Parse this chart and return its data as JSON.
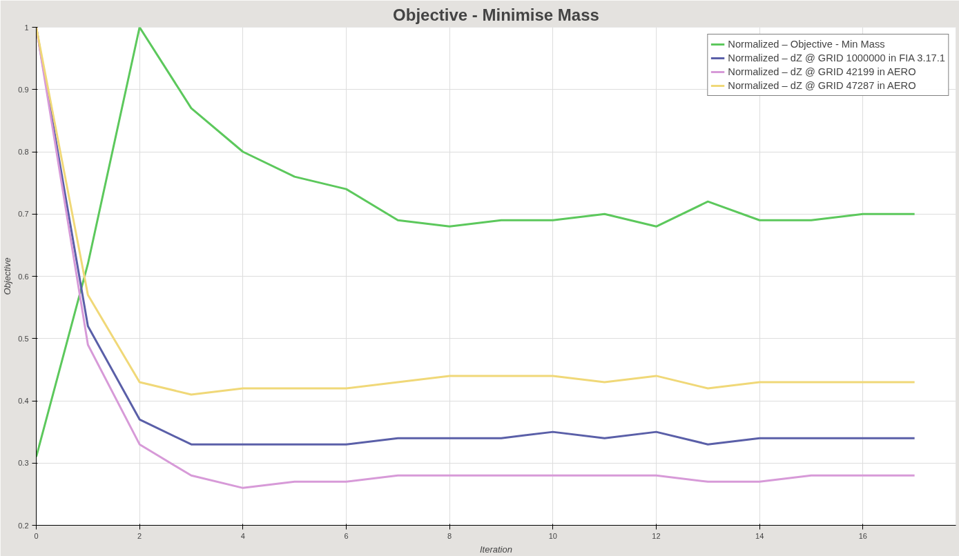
{
  "chart_data": {
    "type": "line",
    "title": "Objective - Minimise Mass",
    "xlabel": "Iteration",
    "ylabel": "Objective",
    "x": [
      0,
      1,
      2,
      3,
      4,
      5,
      6,
      7,
      8,
      9,
      10,
      11,
      12,
      13,
      14,
      15,
      16,
      17
    ],
    "series": [
      {
        "name": "Normalized – Objective - Min Mass",
        "color": "#5cc85c",
        "values": [
          0.31,
          0.62,
          1.0,
          0.87,
          0.8,
          0.76,
          0.74,
          0.69,
          0.68,
          0.69,
          0.69,
          0.7,
          0.68,
          0.72,
          0.69,
          0.69,
          0.7,
          0.7
        ]
      },
      {
        "name": "Normalized – dZ @ GRID 1000000 in FIA 3.17.1",
        "color": "#5a5fa8",
        "values": [
          1.0,
          0.52,
          0.37,
          0.33,
          0.33,
          0.33,
          0.33,
          0.34,
          0.34,
          0.34,
          0.35,
          0.34,
          0.35,
          0.33,
          0.34,
          0.34,
          0.34,
          0.34
        ]
      },
      {
        "name": "Normalized – dZ @ GRID 42199 in AERO",
        "color": "#d79ad8",
        "values": [
          1.0,
          0.49,
          0.33,
          0.28,
          0.26,
          0.27,
          0.27,
          0.28,
          0.28,
          0.28,
          0.28,
          0.28,
          0.28,
          0.27,
          0.27,
          0.28,
          0.28,
          0.28
        ]
      },
      {
        "name": "Normalized – dZ @ GRID 47287 in AERO",
        "color": "#f0d878",
        "values": [
          1.0,
          0.57,
          0.43,
          0.41,
          0.42,
          0.42,
          0.42,
          0.43,
          0.44,
          0.44,
          0.44,
          0.43,
          0.44,
          0.42,
          0.43,
          0.43,
          0.43,
          0.43
        ]
      }
    ],
    "xlim": [
      0,
      17.8
    ],
    "xticks": [
      0,
      2,
      4,
      6,
      8,
      10,
      12,
      14,
      16
    ],
    "ylim": [
      0.2,
      1.0
    ],
    "yticks": [
      0.2,
      0.3,
      0.4,
      0.5,
      0.6,
      0.7,
      0.8,
      0.9,
      1
    ],
    "grid": true,
    "legend": "top right"
  }
}
